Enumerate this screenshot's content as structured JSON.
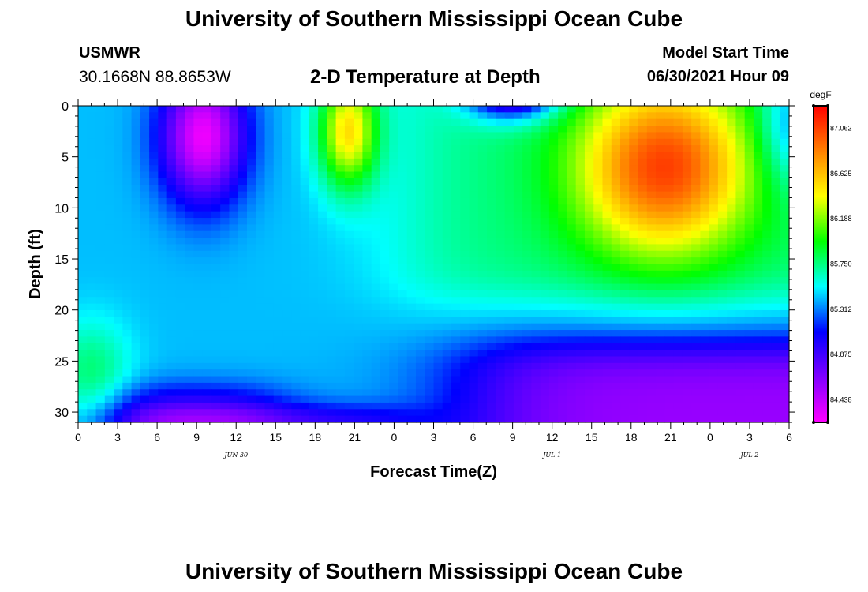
{
  "header": {
    "title": "University of Southern Mississippi Ocean Cube",
    "station": "USMWR",
    "coordinates": "30.1668N  88.8653W",
    "subtitle": "2-D Temperature at Depth",
    "model_start_label": "Model Start Time",
    "model_start_value": "06/30/2021 Hour 09"
  },
  "footer": {
    "title": "University of Southern Mississippi Ocean Cube"
  },
  "chart_data": {
    "type": "heatmap",
    "title": "2-D Temperature at Depth",
    "xlabel": "Forecast Time(Z)",
    "ylabel": "Depth (ft)",
    "x_ticks": [
      "0",
      "3",
      "6",
      "9",
      "12",
      "15",
      "18",
      "21",
      "0",
      "3",
      "6",
      "9",
      "12",
      "15",
      "18",
      "21",
      "0",
      "3",
      "6"
    ],
    "date_labels": [
      {
        "label": "JUN 30",
        "hour_index": 12
      },
      {
        "label": "JUL 1",
        "hour_index": 36
      },
      {
        "label": "JUL 2",
        "hour_index": 51
      }
    ],
    "x_hours_range": [
      0,
      54
    ],
    "y_ticks": [
      0,
      5,
      10,
      15,
      20,
      25,
      30
    ],
    "ylim": [
      0,
      31
    ],
    "y_inverted": true,
    "colorbar": {
      "unit": "degF",
      "ticks": [
        "87.062",
        "86.625",
        "86.188",
        "85.750",
        "85.312",
        "84.875",
        "84.438"
      ],
      "range": [
        84.22,
        87.28
      ],
      "colors": [
        "#ff00ff",
        "#8000ff",
        "#0000ff",
        "#00ffff",
        "#00ff00",
        "#ffff00",
        "#ff8000",
        "#ff0000"
      ]
    },
    "field_features": [
      {
        "kind": "cold core",
        "hours": [
          6,
          14
        ],
        "depth_ft": [
          0,
          10
        ],
        "degF": 84.4
      },
      {
        "kind": "warm core",
        "hours": [
          18,
          24
        ],
        "depth_ft": [
          0,
          8
        ],
        "degF": 86.6
      },
      {
        "kind": "cold core",
        "hours": [
          27,
          38
        ],
        "depth_ft": [
          0,
          2
        ],
        "degF": 84.4
      },
      {
        "kind": "warm core",
        "hours": [
          37,
          54
        ],
        "depth_ft": [
          2,
          16
        ],
        "degF": 87.0
      },
      {
        "kind": "cold bottom layer",
        "hours": [
          30,
          54
        ],
        "depth_ft": [
          24,
          31
        ],
        "degF": 84.6
      }
    ]
  }
}
